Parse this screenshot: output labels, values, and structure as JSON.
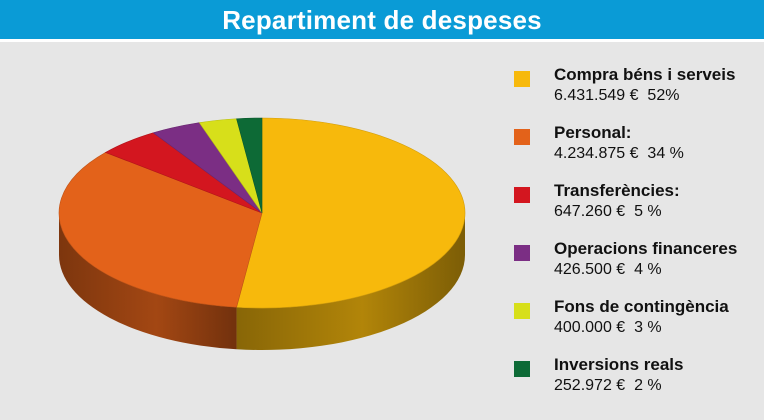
{
  "header": {
    "title": "Repartiment de despeses"
  },
  "chart_data": {
    "type": "pie",
    "title": "Repartiment de despeses",
    "slices": [
      {
        "label": "Compra béns i serveis",
        "amount_text": "6.431.549 €",
        "percent_text": "52%",
        "percent": 52,
        "color": "#f7b90c"
      },
      {
        "label": "Personal:",
        "amount_text": "4.234.875  €",
        "percent_text": "34 %",
        "percent": 34,
        "color": "#e3621a"
      },
      {
        "label": "Transferències:",
        "amount_text": "647.260 €",
        "percent_text": "5 %",
        "percent": 5,
        "color": "#d3161f"
      },
      {
        "label": "Operacions financeres",
        "amount_text": "426.500 €",
        "percent_text": "4 %",
        "percent": 4,
        "color": "#7b2e84"
      },
      {
        "label": "Fons de contingència",
        "amount_text": "400.000 €",
        "percent_text": "3 %",
        "percent": 3,
        "color": "#d7df1a"
      },
      {
        "label": "Inversions reals",
        "amount_text": "252.972 €",
        "percent_text": "2 %",
        "percent": 2,
        "color": "#0d6a36"
      }
    ],
    "legend_placement": "right"
  },
  "colors": {
    "header_bg": "#0a9bd6",
    "page_bg": "#e6e6e6"
  }
}
